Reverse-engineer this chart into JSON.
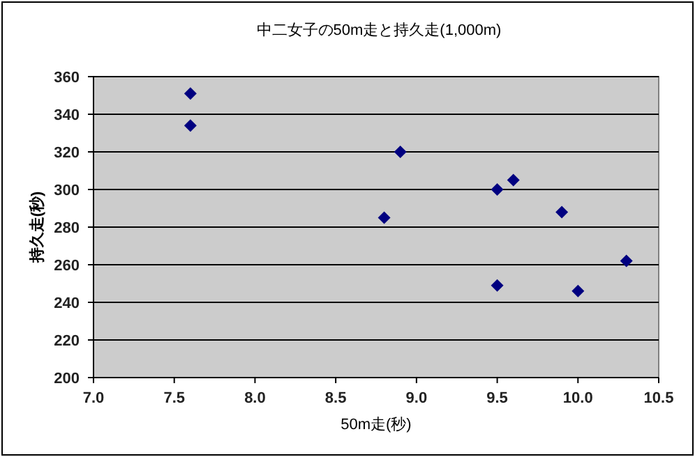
{
  "chart_data": {
    "type": "scatter",
    "title": "中二女子の50m走と持久走(1,000m)",
    "xlabel": "50m走(秒)",
    "ylabel": "持久走(秒)",
    "x": [
      7.6,
      7.6,
      8.9,
      8.8,
      9.5,
      9.6,
      9.9,
      9.5,
      10.0,
      10.3
    ],
    "series": [
      {
        "color": "#000080",
        "values": [
          351,
          334,
          320,
          285,
          300,
          305,
          288,
          249,
          246,
          262
        ]
      }
    ],
    "xlim": [
      7.0,
      10.5
    ],
    "xticks": [
      {
        "value": 7.0,
        "label": "7.0"
      },
      7.5,
      {
        "value": 8.0,
        "label": "8.0"
      },
      8.5,
      {
        "value": 9.0,
        "label": "9.0"
      },
      9.5,
      {
        "value": 10.0,
        "label": "10.0"
      },
      10.5
    ],
    "ylim": [
      200,
      360
    ],
    "yticks": [
      200,
      220,
      240,
      260,
      280,
      300,
      320,
      340,
      360
    ],
    "grid": "y",
    "marker": "diamond"
  }
}
